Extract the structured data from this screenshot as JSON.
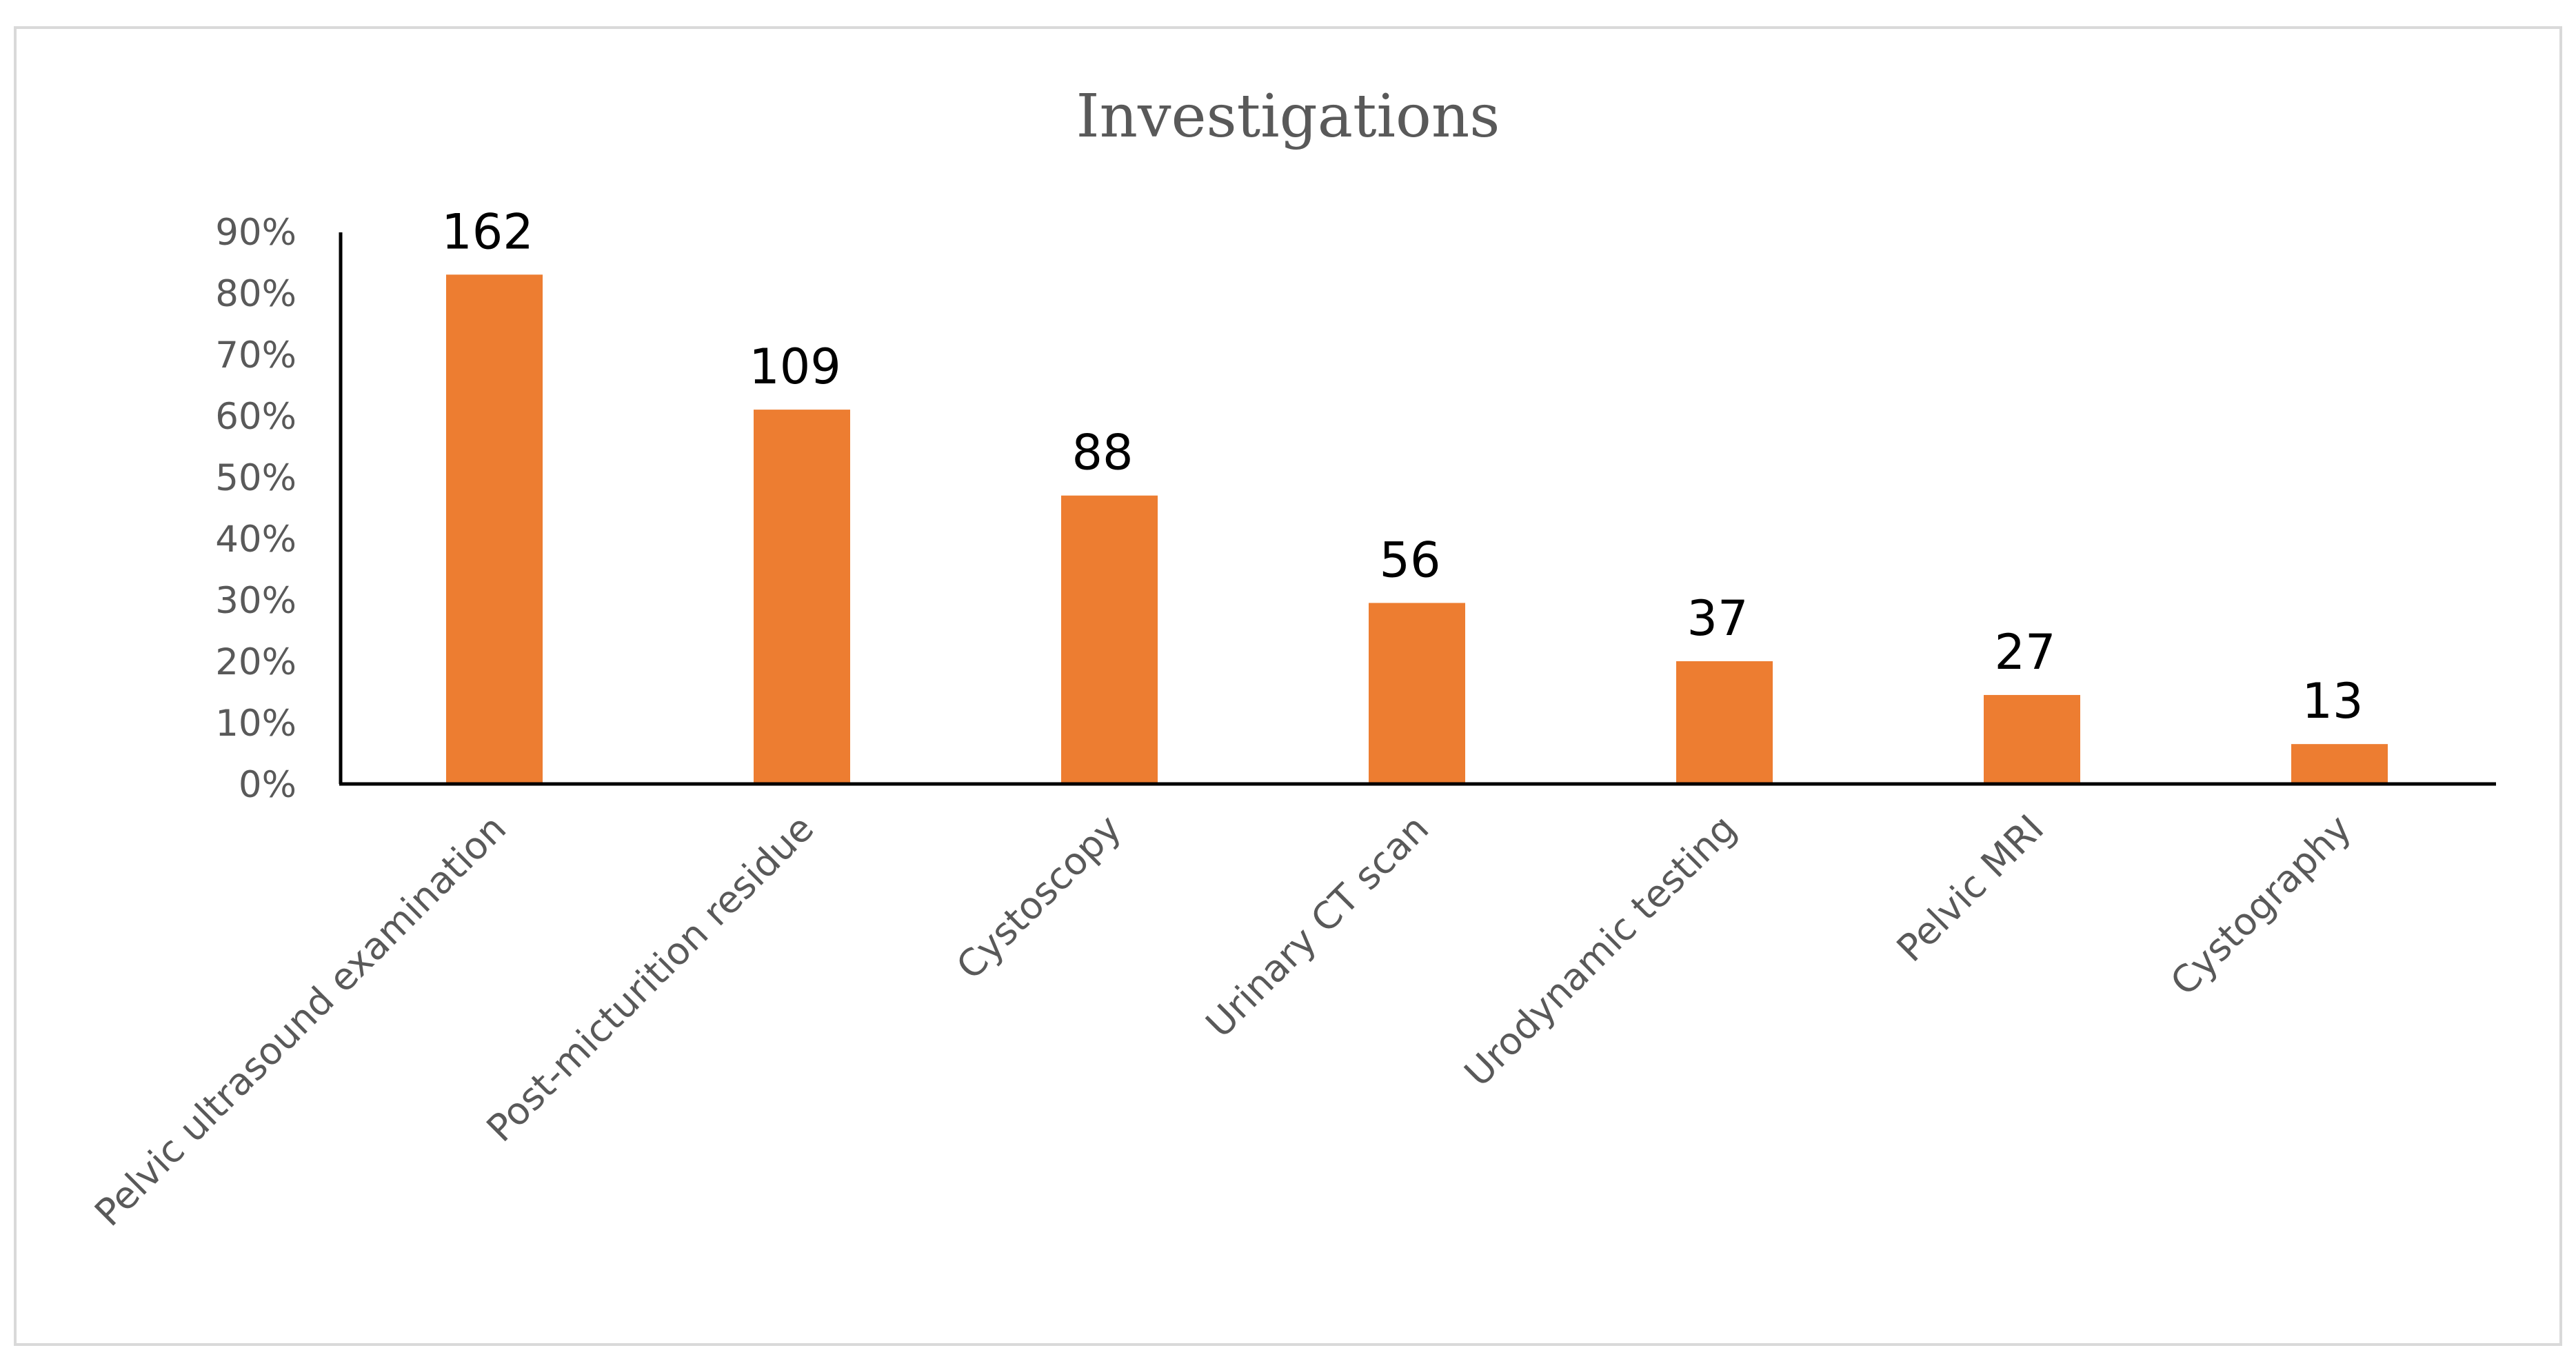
{
  "chart_data": {
    "type": "bar",
    "title": "Investigations",
    "categories": [
      "Pelvic ultrasound examination",
      "Post-micturition residue",
      "Cystoscopy",
      "Urinary CT scan",
      "Urodynamic testing",
      "Pelvic MRI",
      "Cystography"
    ],
    "values": [
      83,
      61,
      47,
      29.5,
      20,
      14.5,
      6.5
    ],
    "data_labels": [
      "162",
      "109",
      "88",
      "56",
      "37",
      "27",
      "13"
    ],
    "y_ticks": [
      "0%",
      "10%",
      "20%",
      "30%",
      "40%",
      "50%",
      "60%",
      "70%",
      "80%",
      "90%"
    ],
    "ylim": [
      0,
      90
    ],
    "bar_color": "#ED7D31",
    "axis_color": "#000000",
    "border_color": "#D9D9D9",
    "grid": false,
    "legend": "none"
  }
}
